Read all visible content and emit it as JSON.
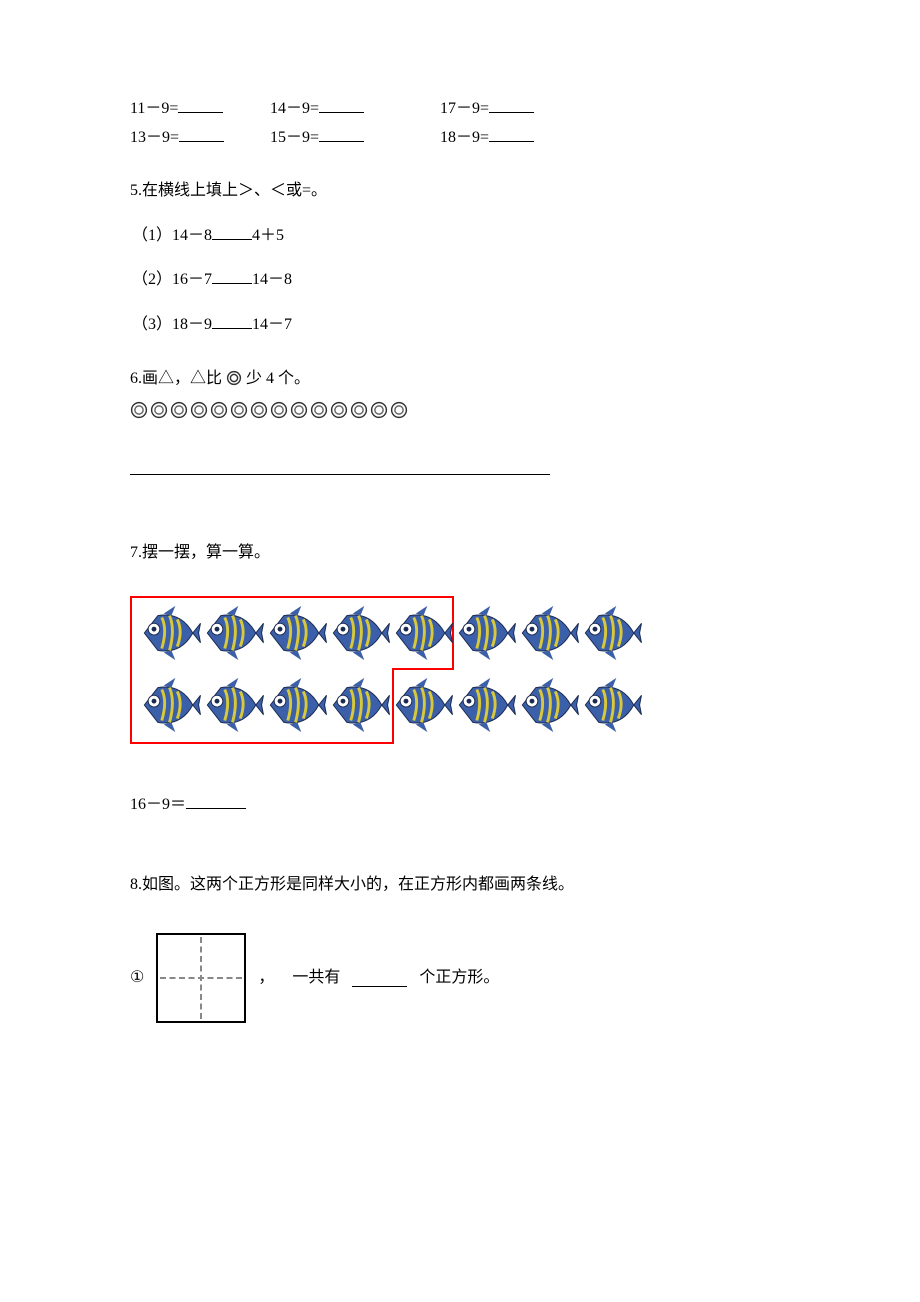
{
  "equations": {
    "row1": {
      "a": "11－9=",
      "b": "14－9=",
      "c": "17－9="
    },
    "row2": {
      "a": "13－9=",
      "b": "15－9=",
      "c": "18－9="
    }
  },
  "q5": {
    "title": "5.在横线上填上＞、＜或=。",
    "s1_left": "（1）14－8",
    "s1_right": "4＋5",
    "s2_left": "（2）16－7",
    "s2_right": "14－8",
    "s3_left": "（3）18－9",
    "s3_right": "14－7"
  },
  "q6": {
    "prefix": "6.画△，△比",
    "suffix": "少 4 个。",
    "circle_count": 14,
    "circle_color_outer": "#333333",
    "circle_color_inner": "#666666"
  },
  "q7": {
    "title": "7.摆一摆，算一算。",
    "fish_row1_count": 8,
    "fish_row2_count": 8,
    "boxed_row1": 5,
    "boxed_row2": 4,
    "fish_body_color": "#3b5fa8",
    "fish_stripe_color": "#d8c93a",
    "fish_eye_color": "#ffffff",
    "eq_left": "16－9＝"
  },
  "q8": {
    "title": "8.如图。这两个正方形是同样大小的，在正方形内都画两条线。",
    "label": "①",
    "comma": "，",
    "text_left": "一共有",
    "text_right": "个正方形。"
  },
  "colors": {
    "text": "#000000",
    "background": "#ffffff",
    "red": "#ff0000",
    "dash": "#888888"
  }
}
